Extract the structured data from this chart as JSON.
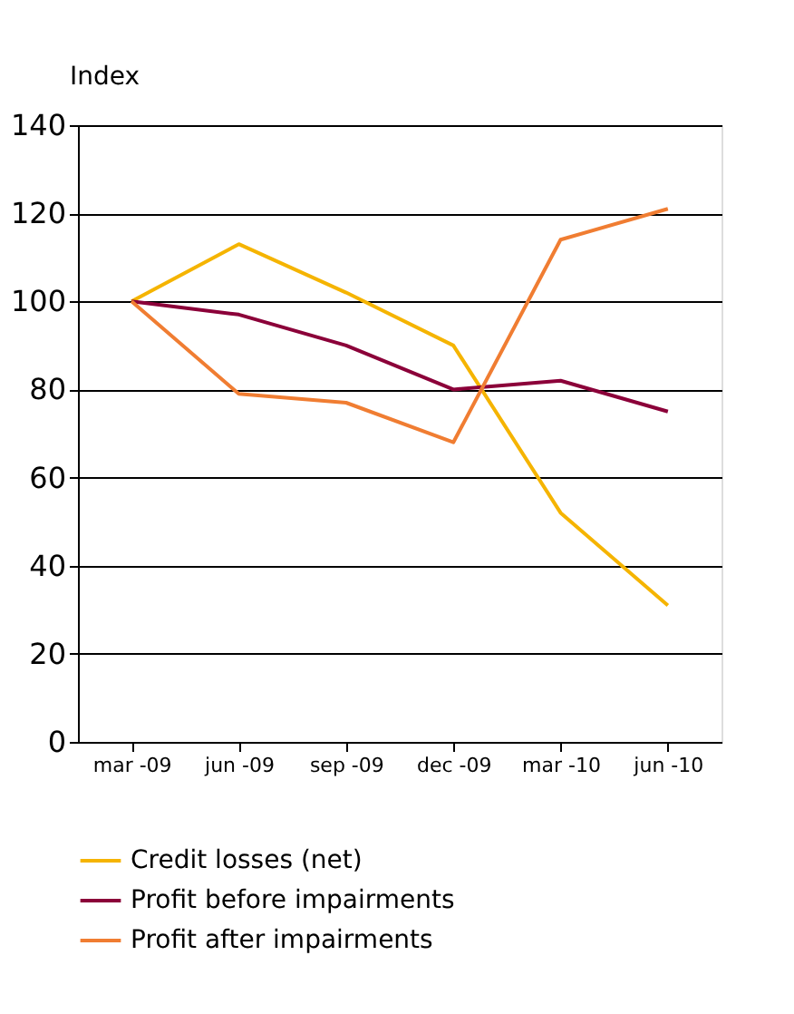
{
  "chart_data": {
    "type": "line",
    "ylabel": "Index",
    "categories": [
      "mar -09",
      "jun -09",
      "sep -09",
      "dec -09",
      "mar -10",
      "jun -10"
    ],
    "series": [
      {
        "name": "Credit losses (net)",
        "color": "#f5b400",
        "values": [
          100,
          113,
          102,
          90,
          52,
          31
        ]
      },
      {
        "name": "Profit before impairments",
        "color": "#8b0039",
        "values": [
          100,
          97,
          90,
          80,
          82,
          75
        ]
      },
      {
        "name": "Profit after impairments",
        "color": "#f07d32",
        "values": [
          100,
          79,
          77,
          68,
          114,
          121
        ]
      }
    ],
    "ylim": [
      0,
      140
    ],
    "yticks": [
      0,
      20,
      40,
      60,
      80,
      100,
      120,
      140
    ],
    "grid": "y",
    "legend": "bottom",
    "marker": "none",
    "line_style": "solid"
  }
}
